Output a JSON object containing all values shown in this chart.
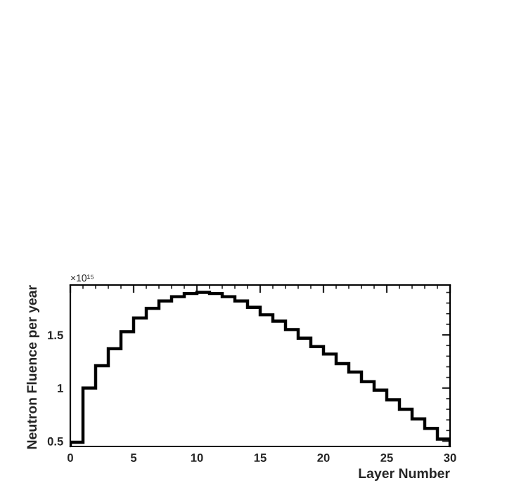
{
  "chart_data": {
    "type": "histogram",
    "xlabel": "Layer Number",
    "ylabel": "Neutron Fluence per year",
    "annotations": [
      "×10¹⁵"
    ],
    "bins": [
      0,
      1,
      2,
      3,
      4,
      5,
      6,
      7,
      8,
      9,
      10,
      11,
      12,
      13,
      14,
      15,
      16,
      17,
      18,
      19,
      20,
      21,
      22,
      23,
      24,
      25,
      26,
      27,
      28,
      29,
      30
    ],
    "values": [
      0.49,
      1.0,
      1.21,
      1.37,
      1.53,
      1.66,
      1.75,
      1.82,
      1.86,
      1.89,
      1.9,
      1.89,
      1.86,
      1.82,
      1.76,
      1.69,
      1.63,
      1.55,
      1.47,
      1.39,
      1.32,
      1.23,
      1.15,
      1.06,
      0.98,
      0.89,
      0.8,
      0.71,
      0.62,
      0.52
    ],
    "color": "#000000",
    "xlim": [
      0,
      30
    ],
    "ylim": [
      0.45,
      1.97
    ],
    "xticks": [
      0,
      5,
      10,
      15,
      20,
      25,
      30
    ],
    "yticks": [
      0.5,
      1,
      1.5
    ],
    "grid": false,
    "legend": false
  }
}
